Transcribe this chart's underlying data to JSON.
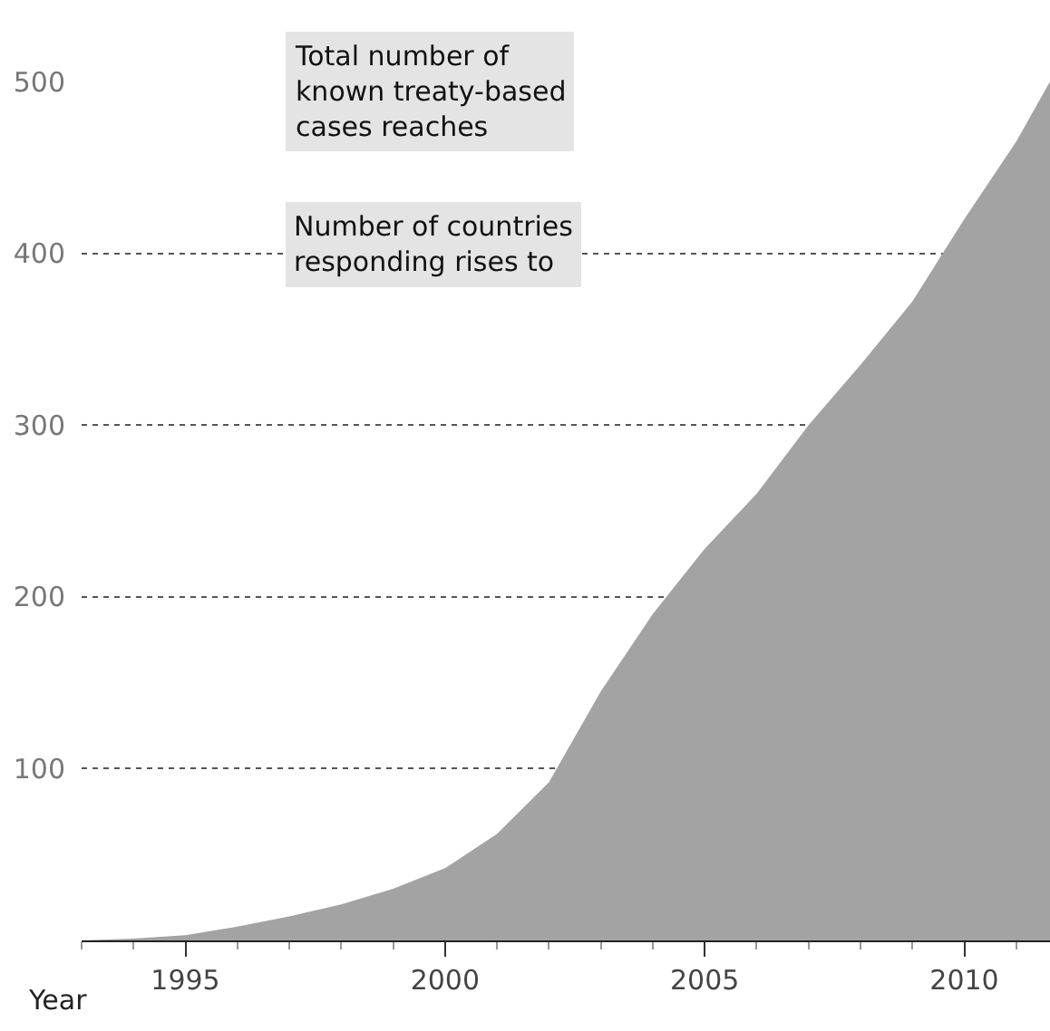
{
  "chart_data": {
    "type": "area",
    "xlabel": "Year",
    "annotations": [
      "Total number of\nknown treaty-based\ncases reaches",
      "Number of countries\nresponding rises to"
    ],
    "x": [
      1993,
      1994,
      1995,
      1996,
      1997,
      1998,
      1999,
      2000,
      2001,
      2002,
      2003,
      2004,
      2005,
      2006,
      2007,
      2008,
      2009,
      2010,
      2011,
      2011.65
    ],
    "series": [
      {
        "color": "#a3a3a3",
        "values": [
          0,
          1,
          3,
          8,
          14,
          21,
          30,
          42,
          62,
          92,
          145,
          190,
          228,
          260,
          300,
          335,
          372,
          420,
          465,
          500
        ]
      }
    ],
    "xlim": [
      1993,
      2011.65
    ],
    "xticks": [
      1995,
      2000,
      2005,
      2010
    ],
    "ylim": [
      0,
      500
    ],
    "yticks": [
      100,
      200,
      300,
      400,
      500
    ],
    "grid": "y"
  }
}
